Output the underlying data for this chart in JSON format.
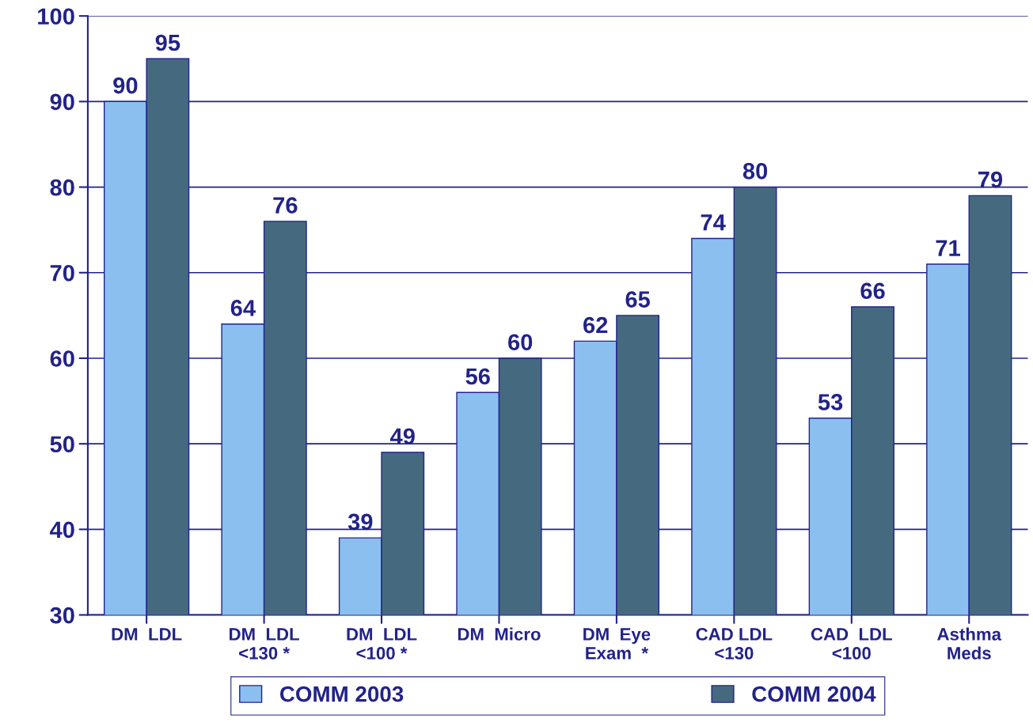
{
  "chart_data": {
    "type": "bar",
    "categories": [
      "DM  LDL",
      "DM  LDL\n<130 *",
      "DM  LDL\n<100 *",
      "DM  Micro",
      "DM  Eye\nExam  *",
      "CAD LDL\n<130",
      "CAD  LDL\n<100",
      "Asthma\nMeds"
    ],
    "series": [
      {
        "name": "COMM 2003",
        "color": "#8bbff0",
        "values": [
          90,
          64,
          39,
          56,
          62,
          74,
          53,
          71
        ]
      },
      {
        "name": "COMM 2004",
        "color": "#456a80",
        "values": [
          95,
          76,
          49,
          60,
          65,
          80,
          66,
          79
        ]
      }
    ],
    "ylim": [
      30,
      100
    ],
    "yticks": [
      30,
      40,
      50,
      60,
      70,
      80,
      90,
      100
    ],
    "grid": "y",
    "legend": "bottom",
    "data_labels": true
  }
}
